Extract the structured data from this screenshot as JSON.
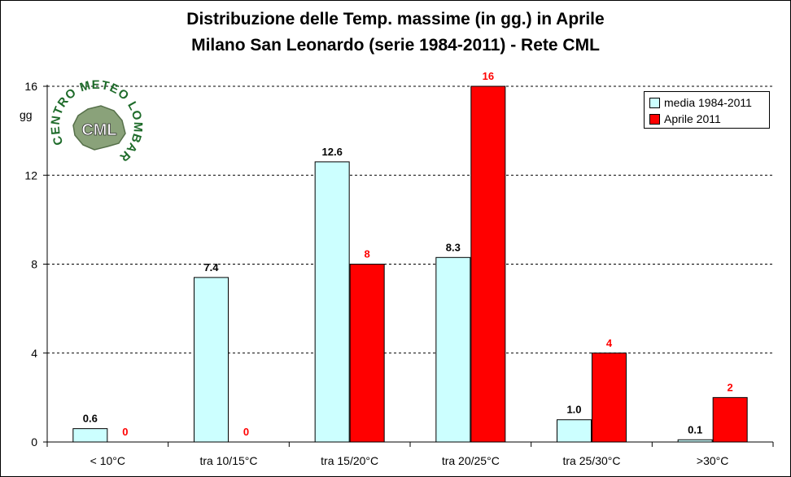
{
  "chart_data": {
    "type": "bar",
    "title": "Distribuzione delle Temp. massime (in gg.) in Aprile",
    "subtitle": "Milano San Leonardo (serie 1984-2011) - Rete CML",
    "xlabel": "",
    "ylabel": "gg",
    "ylim": [
      0,
      16
    ],
    "yticks": [
      0,
      4,
      8,
      12,
      16
    ],
    "grid": true,
    "legend_position": "top-right",
    "categories": [
      "< 10°C",
      "tra 10/15°C",
      "tra 15/20°C",
      "tra 20/25°C",
      "tra 25/30°C",
      ">30°C"
    ],
    "series": [
      {
        "name": "media 1984-2011",
        "color": "#ccffff",
        "label_color": "#000000",
        "values": [
          0.6,
          7.4,
          12.6,
          8.3,
          1.0,
          0.1
        ],
        "labels": [
          "0.6",
          "7.4",
          "12.6",
          "8.3",
          "1.0",
          "0.1"
        ]
      },
      {
        "name": "Aprile 2011",
        "color": "#ff0000",
        "label_color": "#ff0000",
        "values": [
          0,
          0,
          8,
          16,
          4,
          2
        ],
        "labels": [
          "0",
          "0",
          "8",
          "16",
          "4",
          "2"
        ]
      }
    ]
  },
  "logo": {
    "top_text": "CENTRO METEO LOMBARDO",
    "center_text": "CML",
    "color": "#1e6b2a"
  }
}
